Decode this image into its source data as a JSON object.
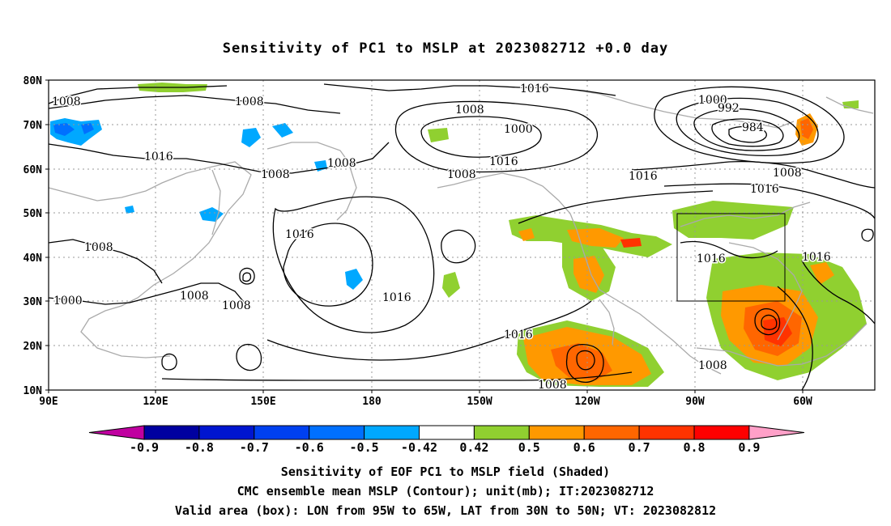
{
  "title": "Sensitivity of PC1 to MSLP at 2023082712 +0.0 day",
  "lat_ticks": [
    "80N",
    "70N",
    "60N",
    "50N",
    "40N",
    "30N",
    "20N",
    "10N"
  ],
  "lon_ticks": [
    "90E",
    "120E",
    "150E",
    "180",
    "150W",
    "120W",
    "90W",
    "60W"
  ],
  "contour_labels": [
    "1008",
    "1008",
    "1016",
    "1008",
    "1008",
    "1016",
    "1008",
    "1016",
    "1008",
    "1000",
    "1016",
    "1008",
    "1016",
    "1000",
    "992",
    "984",
    "1008",
    "1016",
    "1016",
    "1016",
    "1008",
    "1008",
    "1000",
    "1008",
    "1016",
    "1016",
    "1008"
  ],
  "colorbar": {
    "labels": [
      "-0.9",
      "-0.8",
      "-0.7",
      "-0.6",
      "-0.5",
      "-0.42",
      "0.42",
      "0.5",
      "0.6",
      "0.7",
      "0.8",
      "0.9"
    ],
    "colors": [
      "#0000a0",
      "#0015d0",
      "#0040f0",
      "#0070ff",
      "#00a8ff",
      "#ffffff",
      "#90d030",
      "#ff9900",
      "#ff6600",
      "#ff3300",
      "#ff0000"
    ],
    "end_colors": {
      "left": "#c000a0",
      "right": "#ffa0c8"
    }
  },
  "captions": {
    "line1": "Sensitivity of EOF PC1 to MSLP field (Shaded)",
    "line2": "CMC ensemble mean MSLP (Contour); unit(mb); IT:2023082712",
    "line3": "Valid area (box): LON from 95W to 65W, LAT from 30N to 50N; VT: 2023082812"
  }
}
